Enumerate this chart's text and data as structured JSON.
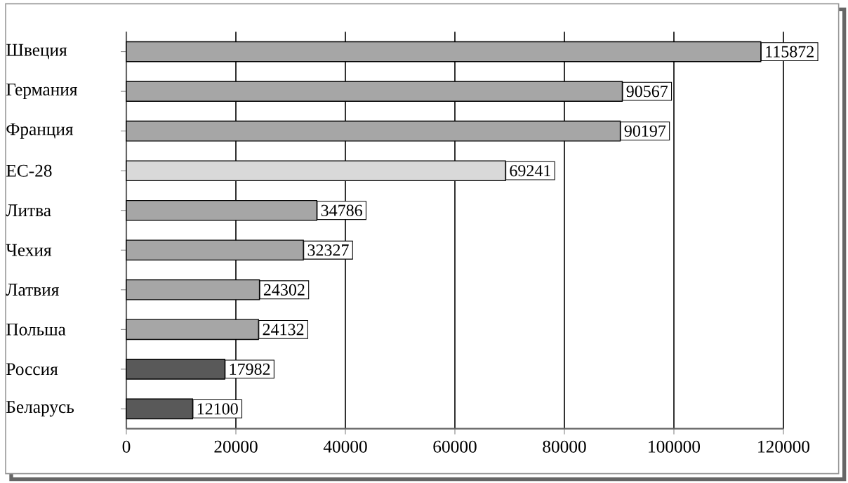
{
  "chart_data": {
    "type": "bar",
    "orientation": "horizontal",
    "categories": [
      "Швеция",
      "Германия",
      "Франция",
      "ЕС-28",
      "Литва",
      "Чехия",
      "Латвия",
      "Польша",
      "Россия",
      "Беларусь"
    ],
    "values": [
      115872,
      90567,
      90197,
      69241,
      34786,
      32327,
      24302,
      24132,
      17982,
      12100
    ],
    "colors": [
      "#a6a6a6",
      "#a6a6a6",
      "#a6a6a6",
      "#d9d9d9",
      "#a6a6a6",
      "#a6a6a6",
      "#a6a6a6",
      "#a6a6a6",
      "#595959",
      "#595959"
    ],
    "xlim": [
      0,
      120000
    ],
    "xticks": [
      0,
      20000,
      40000,
      60000,
      80000,
      100000,
      120000
    ],
    "grid": "x",
    "data_labels": true
  }
}
